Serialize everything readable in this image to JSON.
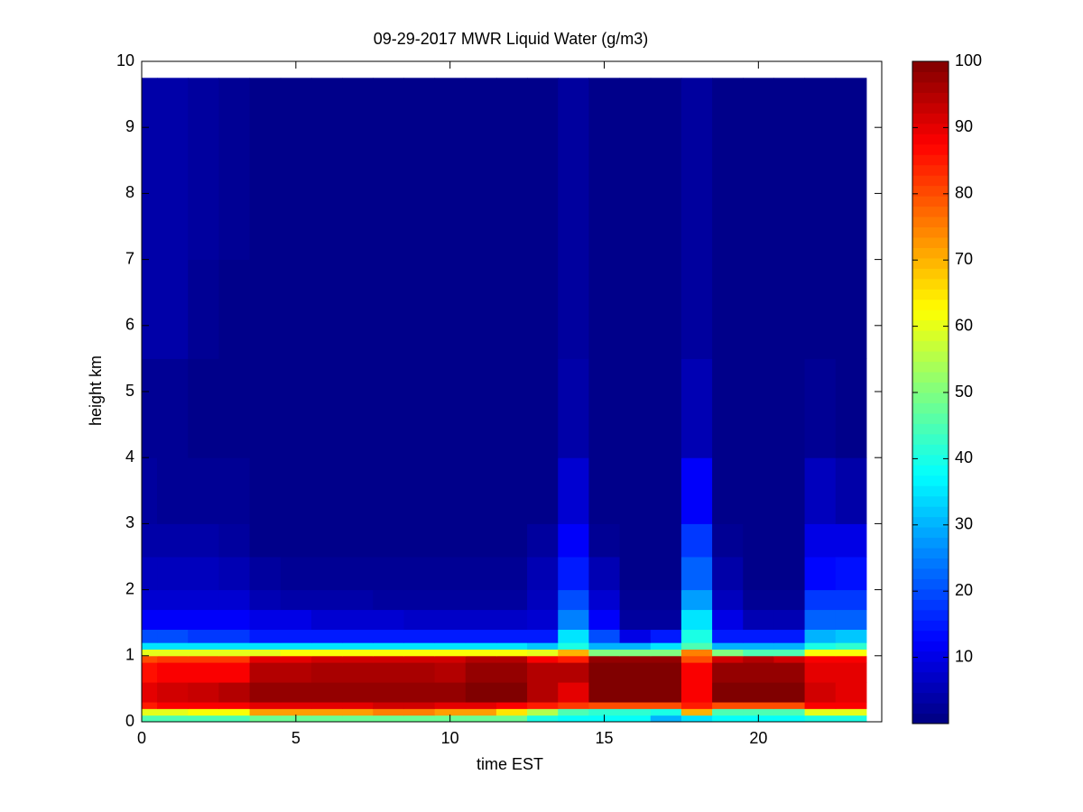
{
  "chart_data": {
    "type": "heatmap",
    "title": "09-29-2017 MWR Liquid Water (g/m3)",
    "x_label": "time EST",
    "y_label": "height km",
    "colormap": "jet",
    "x": [
      0,
      1,
      2,
      3,
      4,
      5,
      6,
      7,
      8,
      9,
      10,
      11,
      12,
      13,
      14,
      15,
      16,
      17,
      18,
      19,
      20,
      21,
      22,
      23
    ],
    "y_edges": [
      0,
      0.1,
      0.2,
      0.3,
      0.6,
      0.9,
      1.0,
      1.1,
      1.2,
      1.4,
      1.7,
      2.0,
      2.5,
      3.0,
      4.0,
      5.5,
      7.0,
      9.75
    ],
    "values": [
      [
        45,
        45,
        45,
        45,
        48,
        48,
        48,
        48,
        48,
        48,
        48,
        48,
        48,
        40,
        38,
        38,
        38,
        30,
        35,
        38,
        38,
        38,
        40,
        40
      ],
      [
        60,
        60,
        62,
        62,
        72,
        72,
        72,
        72,
        75,
        75,
        72,
        72,
        65,
        55,
        45,
        42,
        42,
        40,
        70,
        45,
        45,
        45,
        60,
        60
      ],
      [
        85,
        88,
        88,
        88,
        90,
        90,
        90,
        90,
        92,
        92,
        90,
        90,
        88,
        85,
        82,
        80,
        80,
        80,
        85,
        80,
        80,
        80,
        88,
        88
      ],
      [
        90,
        92,
        93,
        95,
        98,
        98,
        98,
        98,
        98,
        98,
        98,
        100,
        100,
        95,
        90,
        100,
        100,
        100,
        88,
        100,
        100,
        100,
        92,
        90
      ],
      [
        86,
        88,
        88,
        88,
        95,
        95,
        96,
        96,
        96,
        96,
        95,
        98,
        98,
        95,
        95,
        100,
        100,
        100,
        88,
        98,
        98,
        98,
        90,
        90
      ],
      [
        80,
        82,
        82,
        82,
        90,
        90,
        92,
        92,
        92,
        92,
        92,
        95,
        95,
        88,
        85,
        98,
        98,
        98,
        80,
        92,
        95,
        92,
        88,
        88
      ],
      [
        60,
        60,
        60,
        60,
        60,
        62,
        62,
        62,
        62,
        62,
        62,
        62,
        62,
        60,
        70,
        50,
        50,
        50,
        75,
        50,
        45,
        45,
        62,
        62
      ],
      [
        35,
        35,
        35,
        35,
        35,
        35,
        35,
        35,
        35,
        35,
        35,
        35,
        35,
        32,
        40,
        30,
        30,
        35,
        45,
        30,
        30,
        30,
        40,
        42
      ],
      [
        20,
        20,
        18,
        18,
        15,
        15,
        15,
        15,
        15,
        15,
        15,
        15,
        15,
        15,
        35,
        20,
        10,
        15,
        40,
        15,
        15,
        15,
        30,
        32
      ],
      [
        12,
        12,
        12,
        12,
        10,
        10,
        8,
        8,
        8,
        7,
        7,
        7,
        7,
        8,
        25,
        12,
        3,
        3,
        35,
        10,
        5,
        5,
        22,
        22
      ],
      [
        8,
        8,
        8,
        8,
        5,
        4,
        4,
        4,
        3,
        3,
        3,
        3,
        3,
        6,
        20,
        8,
        2,
        2,
        28,
        6,
        2,
        2,
        18,
        18
      ],
      [
        6,
        6,
        6,
        5,
        3,
        2,
        2,
        2,
        2,
        2,
        2,
        2,
        2,
        5,
        15,
        5,
        1,
        1,
        22,
        4,
        1,
        1,
        13,
        14
      ],
      [
        4,
        4,
        4,
        3,
        1,
        1,
        1,
        1,
        1,
        1,
        1,
        1,
        1,
        3,
        12,
        2,
        1,
        1,
        18,
        2,
        1,
        1,
        10,
        10
      ],
      [
        3,
        2,
        2,
        2,
        1,
        1,
        1,
        1,
        1,
        1,
        1,
        1,
        1,
        1,
        8,
        1,
        1,
        1,
        12,
        1,
        1,
        1,
        6,
        4
      ],
      [
        2,
        2,
        1,
        1,
        1,
        1,
        1,
        1,
        1,
        1,
        1,
        1,
        1,
        1,
        4,
        1,
        1,
        1,
        5,
        1,
        1,
        1,
        2,
        1
      ],
      [
        4,
        4,
        2,
        1,
        1,
        1,
        1,
        1,
        1,
        1,
        1,
        1,
        1,
        1,
        3,
        1,
        1,
        1,
        3,
        1,
        1,
        1,
        1,
        1
      ],
      [
        4,
        4,
        3,
        2,
        1,
        1,
        1,
        1,
        1,
        1,
        1,
        1,
        1,
        1,
        3,
        1,
        1,
        1,
        3,
        1,
        1,
        1,
        1,
        1
      ]
    ],
    "xlim": [
      0,
      24
    ],
    "xticks": [
      0,
      5,
      10,
      15,
      20
    ],
    "ylim": [
      0,
      10
    ],
    "yticks": [
      0,
      1,
      2,
      3,
      4,
      5,
      6,
      7,
      8,
      9,
      10
    ],
    "clim": [
      0,
      100
    ],
    "cticks": [
      10,
      20,
      30,
      40,
      50,
      60,
      70,
      80,
      90,
      100
    ]
  }
}
